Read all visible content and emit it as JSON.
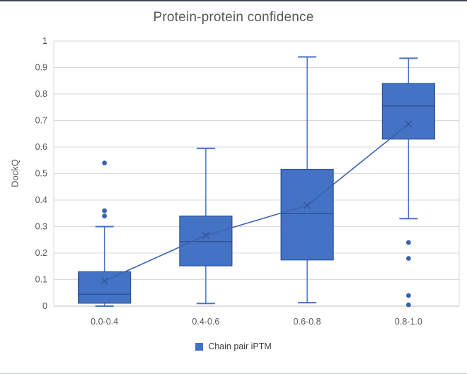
{
  "window": {
    "top_border_color": "#3d4654",
    "bottom_border_color": "#cdd1d8",
    "background": "#ffffff"
  },
  "chart_data": {
    "type": "box",
    "title": "Protein-protein confidence",
    "xlabel": "",
    "ylabel": "DockQ",
    "ylim": [
      0,
      1
    ],
    "grid": true,
    "legend": {
      "label": "Chain pair iPTM",
      "position": "bottom"
    },
    "categories": [
      "0.0-0.4",
      "0.4-0.6",
      "0.6-0.8",
      "0.8-1.0"
    ],
    "y_ticks": [
      "0",
      "0.1",
      "0.2",
      "0.3",
      "0.4",
      "0.5",
      "0.6",
      "0.7",
      "0.8",
      "0.9",
      "1"
    ],
    "series": [
      {
        "name": "Chain pair iPTM",
        "boxes": [
          {
            "category": "0.0-0.4",
            "whisker_low": 0.0,
            "q1": 0.011,
            "median": 0.045,
            "q3": 0.13,
            "whisker_high": 0.3,
            "mean": 0.095,
            "outliers": [
              0.34,
              0.36,
              0.54
            ]
          },
          {
            "category": "0.4-0.6",
            "whisker_low": 0.01,
            "q1": 0.152,
            "median": 0.243,
            "q3": 0.34,
            "whisker_high": 0.595,
            "mean": 0.267,
            "outliers": []
          },
          {
            "category": "0.6-0.8",
            "whisker_low": 0.013,
            "q1": 0.174,
            "median": 0.35,
            "q3": 0.516,
            "whisker_high": 0.94,
            "mean": 0.38,
            "outliers": []
          },
          {
            "category": "0.8-1.0",
            "whisker_low": 0.33,
            "q1": 0.63,
            "median": 0.755,
            "q3": 0.84,
            "whisker_high": 0.935,
            "mean": 0.687,
            "outliers": [
              0.24,
              0.18,
              0.04,
              0.005
            ]
          }
        ]
      }
    ],
    "mean_line": true,
    "colors": {
      "box_fill": "#4472C4",
      "box_border": "#2E5597",
      "whisker": "#4472C4",
      "median": "#2E5597",
      "mean_line": "#3A62B0",
      "mean_marker": "#2E5597",
      "outlier": "#3A62B0",
      "grid": "#D9D9D9",
      "plot_border": "#D9D9D9",
      "axis_line": "#BFBFBF",
      "text": "#595959"
    }
  }
}
